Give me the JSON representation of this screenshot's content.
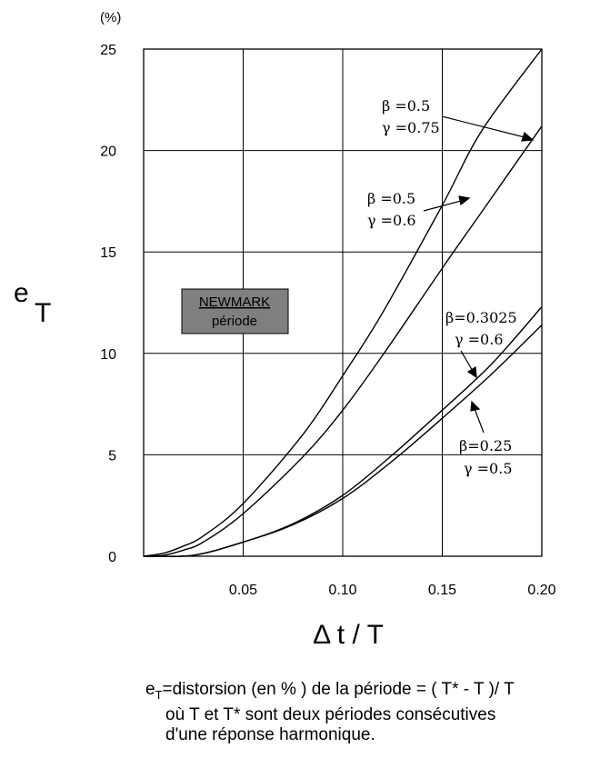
{
  "chart_data": {
    "type": "line",
    "y_unit": "(%)",
    "ylabel_main": "e",
    "ylabel_sub": "T",
    "xlabel": "Δ t / T",
    "xlim": [
      0,
      0.2
    ],
    "ylim": [
      0,
      25
    ],
    "x_ticks": [
      {
        "value": 0.05,
        "label": "0.05"
      },
      {
        "value": 0.1,
        "label": "0.10"
      },
      {
        "value": 0.15,
        "label": "0.15"
      },
      {
        "value": 0.2,
        "label": "0.20"
      }
    ],
    "y_ticks": [
      {
        "value": 0,
        "label": "0"
      },
      {
        "value": 5,
        "label": "5"
      },
      {
        "value": 10,
        "label": "10"
      },
      {
        "value": 15,
        "label": "15"
      },
      {
        "value": 20,
        "label": "20"
      },
      {
        "value": 25,
        "label": "25"
      }
    ],
    "grid": true,
    "box": {
      "title": "NEWMARK",
      "subtitle": "période",
      "color": "#7f7f7f"
    },
    "series": [
      {
        "beta": "β =0.5",
        "gamma": "γ =0.75",
        "x": [
          0,
          0.01,
          0.02,
          0.03,
          0.05,
          0.08,
          0.1,
          0.12,
          0.15,
          0.17,
          0.2
        ],
        "y": [
          0,
          0.15,
          0.5,
          1.0,
          2.6,
          6.0,
          8.9,
          12.0,
          17.3,
          21.0,
          25.0
        ]
      },
      {
        "beta": "β =0.5",
        "gamma": "γ =0.6",
        "x": [
          0,
          0.01,
          0.02,
          0.03,
          0.05,
          0.08,
          0.1,
          0.12,
          0.15,
          0.17,
          0.2
        ],
        "y": [
          0,
          0.05,
          0.3,
          0.7,
          2.1,
          4.9,
          7.2,
          9.9,
          14.2,
          17.0,
          21.2
        ]
      },
      {
        "beta": "β=0.3025",
        "gamma": "γ =0.6",
        "x": [
          0,
          0.025,
          0.05,
          0.075,
          0.1,
          0.125,
          0.15,
          0.175,
          0.2
        ],
        "y": [
          0,
          0.05,
          0.7,
          1.6,
          3.0,
          5.0,
          7.2,
          9.5,
          12.3
        ]
      },
      {
        "beta": "β=0.25",
        "gamma": "γ =0.5",
        "x": [
          0,
          0.025,
          0.05,
          0.075,
          0.1,
          0.125,
          0.15,
          0.175,
          0.2
        ],
        "y": [
          0,
          0.05,
          0.7,
          1.55,
          2.85,
          4.7,
          6.8,
          9.0,
          11.4
        ]
      }
    ]
  },
  "caption": {
    "sym": "e",
    "sym_sub": "T",
    "line1": "=distorsion (en % ) de la période = ( T* - T )/ T",
    "line2": "où T et T* sont deux périodes consécutives",
    "line3": "d'une réponse harmonique."
  }
}
